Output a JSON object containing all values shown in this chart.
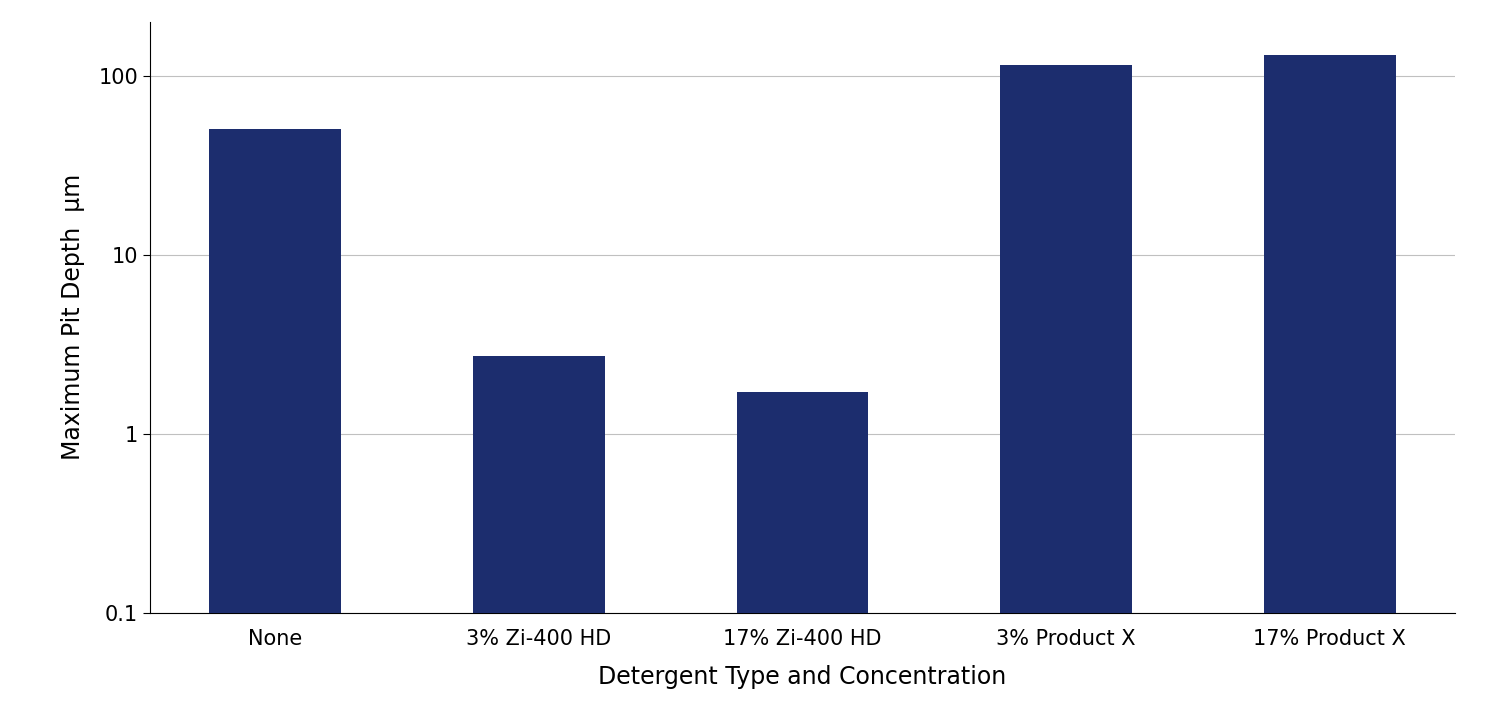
{
  "categories": [
    "None",
    "3% Zi-400 HD",
    "17% Zi-400 HD",
    "3% Product X",
    "17% Product X"
  ],
  "values": [
    50,
    2.7,
    1.7,
    115,
    130
  ],
  "bar_color": "#1C2D6E",
  "xlabel": "Detergent Type and Concentration",
  "ylabel": "Maximum Pit Depth  µm",
  "ylim_min": 0.1,
  "ylim_max": 200,
  "background_color": "#ffffff",
  "grid_color": "#c0c0c0",
  "xlabel_fontsize": 17,
  "ylabel_fontsize": 17,
  "tick_fontsize": 15,
  "bar_width": 0.5,
  "yticks": [
    0.1,
    1,
    10,
    100
  ],
  "ytick_labels": [
    "0.1",
    "1",
    "10",
    "100"
  ]
}
